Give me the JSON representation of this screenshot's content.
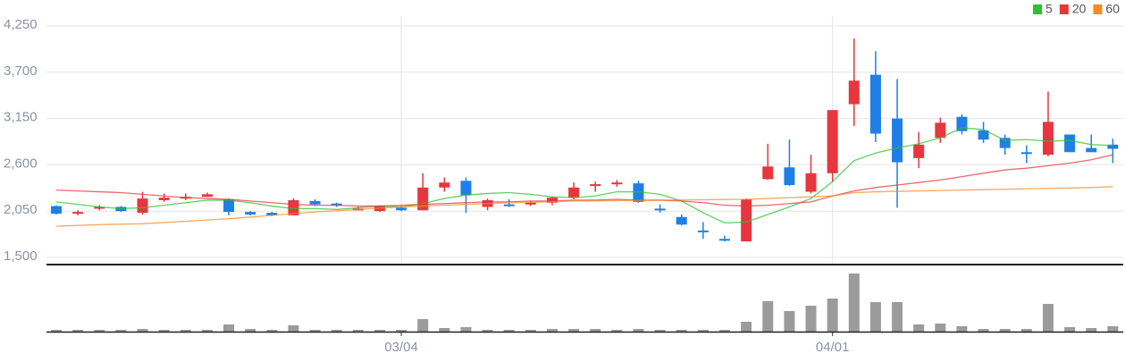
{
  "chart_data": [
    {
      "type": "candlestick",
      "open": [
        2110,
        2030,
        2080,
        2100,
        2030,
        2180,
        2200,
        2220,
        2190,
        2040,
        2030,
        2000,
        2170,
        2140,
        2060,
        2050,
        2090,
        2060,
        2330,
        2410,
        2100,
        2130,
        2130,
        2150,
        2210,
        2350,
        2380,
        2380,
        2080,
        1980,
        1820,
        1720,
        1690,
        2430,
        2570,
        2280,
        2500,
        3320,
        3670,
        3150,
        2680,
        2920,
        3170,
        3010,
        2920,
        2750,
        2720,
        2960,
        2800,
        2840
      ],
      "high": [
        2120,
        2060,
        2120,
        2110,
        2280,
        2260,
        2260,
        2270,
        2200,
        2050,
        2040,
        2200,
        2190,
        2150,
        2100,
        2120,
        2110,
        2500,
        2450,
        2450,
        2200,
        2190,
        2170,
        2220,
        2390,
        2400,
        2420,
        2410,
        2130,
        2010,
        1920,
        1760,
        2200,
        2850,
        2900,
        2720,
        3250,
        4100,
        3950,
        3620,
        2990,
        3160,
        3200,
        3110,
        2960,
        2830,
        3470,
        2960,
        2960,
        2910
      ],
      "low": [
        2010,
        2000,
        2060,
        2040,
        2010,
        2160,
        2180,
        2220,
        2000,
        2000,
        1990,
        2000,
        2110,
        2100,
        2060,
        2040,
        2050,
        2060,
        2280,
        2030,
        2060,
        2100,
        2110,
        2120,
        2190,
        2280,
        2340,
        2150,
        2030,
        1880,
        1720,
        1690,
        1690,
        2420,
        2350,
        2260,
        2400,
        3060,
        2870,
        2090,
        2560,
        2860,
        2960,
        2860,
        2720,
        2620,
        2700,
        2750,
        2750,
        2620
      ],
      "close": [
        2020,
        2040,
        2100,
        2050,
        2200,
        2210,
        2220,
        2250,
        2040,
        2010,
        2000,
        2180,
        2130,
        2130,
        2080,
        2110,
        2060,
        2330,
        2390,
        2240,
        2180,
        2120,
        2150,
        2210,
        2330,
        2370,
        2390,
        2160,
        2070,
        1890,
        1800,
        1700,
        2190,
        2580,
        2360,
        2500,
        3250,
        3600,
        2970,
        2630,
        2840,
        3100,
        3000,
        2900,
        2800,
        2740,
        3110,
        2750,
        2750,
        2790
      ],
      "up_color": "#e8363e",
      "down_color": "#1f7fe6",
      "series": [
        {
          "name": "5",
          "color": "#2fbf2f",
          "values": [
            2160,
            2130,
            2100,
            2080,
            2090,
            2120,
            2150,
            2180,
            2180,
            2150,
            2110,
            2080,
            2080,
            2070,
            2090,
            2110,
            2100,
            2140,
            2200,
            2240,
            2260,
            2270,
            2250,
            2220,
            2210,
            2230,
            2280,
            2280,
            2250,
            2170,
            2030,
            1910,
            1920,
            2010,
            2100,
            2200,
            2400,
            2650,
            2740,
            2800,
            2850,
            2920,
            3040,
            3020,
            2890,
            2900,
            2880,
            2890,
            2840,
            2830
          ]
        },
        {
          "name": "20",
          "color": "#e8363e",
          "values": [
            2300,
            2290,
            2280,
            2270,
            2250,
            2230,
            2210,
            2200,
            2190,
            2170,
            2150,
            2130,
            2120,
            2120,
            2110,
            2110,
            2120,
            2130,
            2140,
            2150,
            2160,
            2160,
            2170,
            2170,
            2180,
            2180,
            2190,
            2180,
            2180,
            2170,
            2150,
            2120,
            2110,
            2120,
            2140,
            2160,
            2230,
            2290,
            2330,
            2360,
            2390,
            2420,
            2460,
            2500,
            2540,
            2560,
            2590,
            2620,
            2660,
            2720
          ]
        },
        {
          "name": "60",
          "color": "#f28c28",
          "values": [
            1870,
            1880,
            1890,
            1895,
            1900,
            1915,
            1930,
            1945,
            1960,
            1980,
            2000,
            2020,
            2040,
            2055,
            2070,
            2085,
            2100,
            2110,
            2120,
            2130,
            2140,
            2150,
            2155,
            2160,
            2170,
            2172,
            2175,
            2178,
            2180,
            2182,
            2185,
            2188,
            2190,
            2200,
            2210,
            2220,
            2230,
            2270,
            2280,
            2285,
            2290,
            2295,
            2300,
            2305,
            2310,
            2315,
            2320,
            2325,
            2330,
            2340
          ]
        }
      ],
      "ylim": [
        1500,
        4250
      ],
      "yticks": [
        {
          "value": 1500,
          "label": "1,500"
        },
        {
          "value": 2050,
          "label": "2,050"
        },
        {
          "value": 2600,
          "label": "2,600"
        },
        {
          "value": 3150,
          "label": "3,150"
        },
        {
          "value": 3700,
          "label": "3,700"
        },
        {
          "value": 4250,
          "label": "4,250"
        }
      ],
      "grid": true,
      "legend": "top-right"
    },
    {
      "type": "bar",
      "categories": [
        null,
        null,
        null,
        null,
        null,
        null,
        null,
        null,
        null,
        null,
        null,
        null,
        null,
        null,
        null,
        null,
        "03/04",
        null,
        null,
        null,
        null,
        null,
        null,
        null,
        null,
        null,
        null,
        null,
        null,
        null,
        null,
        null,
        null,
        null,
        null,
        null,
        "04/01",
        null,
        null,
        null,
        null,
        null,
        null,
        null,
        null,
        null,
        null,
        null,
        null,
        null
      ],
      "values": [
        2,
        2,
        2,
        2,
        3,
        2,
        2,
        2,
        8,
        3,
        2,
        7,
        2,
        2,
        2,
        2,
        2,
        14,
        4,
        5,
        2,
        2,
        2,
        3,
        3,
        3,
        2,
        3,
        2,
        2,
        2,
        2,
        11,
        34,
        23,
        29,
        37,
        65,
        33,
        33,
        8,
        9,
        6,
        3,
        3,
        3,
        31,
        5,
        4,
        6
      ],
      "color": "#9b9b9b",
      "ylim": [
        0,
        70
      ]
    }
  ]
}
